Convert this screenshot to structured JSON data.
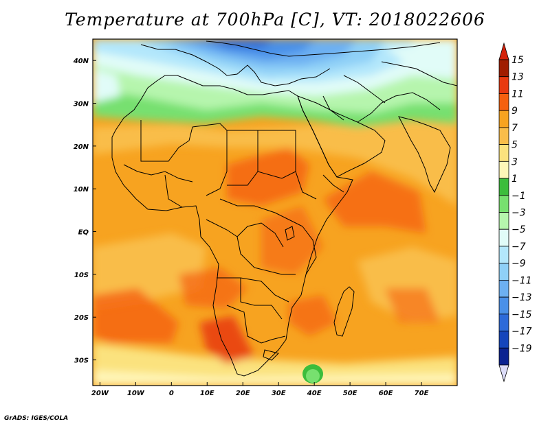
{
  "title": "Temperature at 700hPa [C], VT: 2018022606",
  "credit": "GrADS: IGES/COLA",
  "map": {
    "lon_range": [
      -22,
      80
    ],
    "lat_range": [
      -36,
      45
    ],
    "lon_ticks": [
      {
        "value": -20,
        "label": "20W"
      },
      {
        "value": -10,
        "label": "10W"
      },
      {
        "value": 0,
        "label": "0"
      },
      {
        "value": 10,
        "label": "10E"
      },
      {
        "value": 20,
        "label": "20E"
      },
      {
        "value": 30,
        "label": "30E"
      },
      {
        "value": 40,
        "label": "40E"
      },
      {
        "value": 50,
        "label": "50E"
      },
      {
        "value": 60,
        "label": "60E"
      },
      {
        "value": 70,
        "label": "70E"
      }
    ],
    "lat_ticks": [
      {
        "value": 40,
        "label": "40N"
      },
      {
        "value": 30,
        "label": "30N"
      },
      {
        "value": 20,
        "label": "20N"
      },
      {
        "value": 10,
        "label": "10N"
      },
      {
        "value": 0,
        "label": "EQ"
      },
      {
        "value": -10,
        "label": "10S"
      },
      {
        "value": -20,
        "label": "20S"
      },
      {
        "value": -30,
        "label": "30S"
      }
    ]
  },
  "colorbar": {
    "levels": [
      {
        "label": "15",
        "color": "#a01d00"
      },
      {
        "label": "13",
        "color": "#e83a10"
      },
      {
        "label": "11",
        "color": "#f5600e"
      },
      {
        "label": "9",
        "color": "#f7a320"
      },
      {
        "label": "7",
        "color": "#f9bd4a"
      },
      {
        "label": "5",
        "color": "#fbe27e"
      },
      {
        "label": "3",
        "color": "#fff6b8"
      },
      {
        "label": "1",
        "color": "#3cbd3c"
      },
      {
        "label": "−1",
        "color": "#77e06f"
      },
      {
        "label": "−3",
        "color": "#b6f5ad"
      },
      {
        "label": "−5",
        "color": "#e1fcf8"
      },
      {
        "label": "−7",
        "color": "#b3e7fb"
      },
      {
        "label": "−9",
        "color": "#8fd0f7"
      },
      {
        "label": "−11",
        "color": "#6db0f2"
      },
      {
        "label": "−13",
        "color": "#4a90e8"
      },
      {
        "label": "−15",
        "color": "#2d6ad9"
      },
      {
        "label": "−17",
        "color": "#1545bb"
      },
      {
        "label": "−19",
        "color": "#0b2291"
      }
    ],
    "top_color": "#d4220a",
    "bottom_color": "#dcdcf8"
  }
}
